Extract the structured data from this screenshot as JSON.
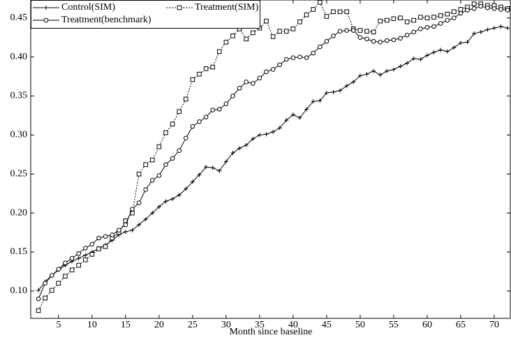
{
  "chart_data": {
    "type": "line",
    "x_label": "Month since baseline",
    "x": [
      2,
      3,
      4,
      5,
      6,
      7,
      8,
      9,
      10,
      11,
      12,
      13,
      14,
      15,
      16,
      17,
      18,
      19,
      20,
      21,
      22,
      23,
      24,
      25,
      26,
      27,
      28,
      29,
      30,
      31,
      32,
      33,
      34,
      35,
      36,
      37,
      38,
      39,
      40,
      41,
      42,
      43,
      44,
      45,
      46,
      47,
      48,
      49,
      50,
      51,
      52,
      53,
      54,
      55,
      56,
      57,
      58,
      59,
      60,
      61,
      62,
      63,
      64,
      65,
      66,
      67,
      68,
      69,
      70,
      71,
      72
    ],
    "series": [
      {
        "name": "Control(SIM)",
        "color": "#000000",
        "marker": "plus",
        "dashed": false,
        "values": [
          0.101,
          0.112,
          0.12,
          0.127,
          0.133,
          0.138,
          0.142,
          0.146,
          0.15,
          0.155,
          0.159,
          0.165,
          0.172,
          0.176,
          0.178,
          0.185,
          0.192,
          0.2,
          0.208,
          0.215,
          0.218,
          0.223,
          0.231,
          0.24,
          0.249,
          0.259,
          0.258,
          0.254,
          0.266,
          0.277,
          0.283,
          0.287,
          0.295,
          0.3,
          0.301,
          0.304,
          0.309,
          0.319,
          0.326,
          0.322,
          0.333,
          0.343,
          0.344,
          0.354,
          0.355,
          0.357,
          0.363,
          0.368,
          0.376,
          0.378,
          0.382,
          0.377,
          0.382,
          0.384,
          0.388,
          0.392,
          0.398,
          0.397,
          0.402,
          0.406,
          0.409,
          0.407,
          0.412,
          0.418,
          0.419,
          0.43,
          0.432,
          0.435,
          0.437,
          0.439,
          0.437
        ]
      },
      {
        "name": "Treatment(SIM)",
        "color": "#000000",
        "marker": "square",
        "dashed": true,
        "values": [
          0.075,
          0.091,
          0.101,
          0.11,
          0.119,
          0.127,
          0.133,
          0.14,
          0.147,
          0.154,
          0.157,
          0.168,
          0.175,
          0.19,
          0.2,
          0.25,
          0.262,
          0.268,
          0.285,
          0.303,
          0.314,
          0.33,
          0.346,
          0.371,
          0.378,
          0.385,
          0.387,
          0.407,
          0.419,
          0.427,
          0.436,
          0.423,
          0.431,
          0.437,
          0.446,
          0.426,
          0.433,
          0.433,
          0.436,
          0.445,
          0.454,
          0.461,
          0.47,
          0.452,
          0.458,
          0.458,
          0.458,
          0.436,
          0.434,
          0.433,
          0.432,
          0.446,
          0.447,
          0.449,
          0.45,
          0.445,
          0.447,
          0.451,
          0.45,
          0.451,
          0.453,
          0.455,
          0.458,
          0.461,
          0.464,
          0.468,
          0.468,
          0.466,
          0.466,
          0.464,
          0.462
        ]
      },
      {
        "name": "Treatment(benchmark)",
        "color": "#000000",
        "marker": "circle",
        "dashed": false,
        "values": [
          0.09,
          0.11,
          0.12,
          0.128,
          0.136,
          0.142,
          0.148,
          0.155,
          0.16,
          0.168,
          0.17,
          0.172,
          0.178,
          0.185,
          0.205,
          0.213,
          0.23,
          0.242,
          0.248,
          0.262,
          0.27,
          0.28,
          0.296,
          0.311,
          0.317,
          0.323,
          0.332,
          0.333,
          0.34,
          0.35,
          0.36,
          0.368,
          0.366,
          0.373,
          0.381,
          0.384,
          0.39,
          0.397,
          0.399,
          0.4,
          0.399,
          0.405,
          0.413,
          0.42,
          0.427,
          0.433,
          0.434,
          0.434,
          0.425,
          0.423,
          0.42,
          0.419,
          0.421,
          0.422,
          0.424,
          0.428,
          0.432,
          0.436,
          0.438,
          0.439,
          0.443,
          0.447,
          0.45,
          0.456,
          0.46,
          0.462,
          0.465,
          0.463,
          0.462,
          0.461,
          0.46
        ]
      }
    ],
    "xlim": [
      0.85,
      72.4
    ],
    "ylim": [
      0.065,
      0.473
    ],
    "xticks": [
      5,
      10,
      15,
      20,
      25,
      30,
      35,
      40,
      45,
      50,
      55,
      60,
      65,
      70
    ],
    "yticks": [
      {
        "value": 0.1,
        "label": "0.10"
      },
      0.15,
      {
        "value": 0.2,
        "label": "0.20"
      },
      0.25,
      {
        "value": 0.3,
        "label": "0.30"
      },
      0.35,
      {
        "value": 0.4,
        "label": "0.40"
      },
      0.45
    ],
    "legend": "upper left"
  }
}
